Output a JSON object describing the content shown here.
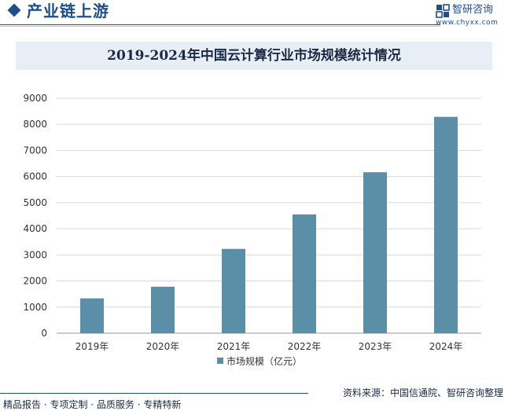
{
  "header": {
    "title": "产业链上游",
    "brand_name": "智研咨询",
    "brand_url": "www.chyxx.com"
  },
  "colors": {
    "brand": "#1f4e8c",
    "bar": "#5b8fa8",
    "title_band": "#e8eef5"
  },
  "chart_data": {
    "type": "bar",
    "title": "2019-2024年中国云计算行业市场规模统计情况",
    "categories": [
      "2019年",
      "2020年",
      "2021年",
      "2022年",
      "2023年",
      "2024年"
    ],
    "series": [
      {
        "name": "市场规模（亿元）",
        "values": [
          1334,
          1781,
          3229,
          4550,
          6165,
          8288
        ]
      }
    ],
    "ylim": [
      0,
      9000
    ],
    "yticks": [
      0,
      1000,
      2000,
      3000,
      4000,
      5000,
      6000,
      7000,
      8000,
      9000
    ],
    "grid": true,
    "legend_position": "bottom"
  },
  "footer": {
    "services": "精品报告 · 专项定制 · 品质服务 · 专精特新",
    "source_label": "资料来源：",
    "source_text": "中国信通院、智研咨询整理"
  }
}
